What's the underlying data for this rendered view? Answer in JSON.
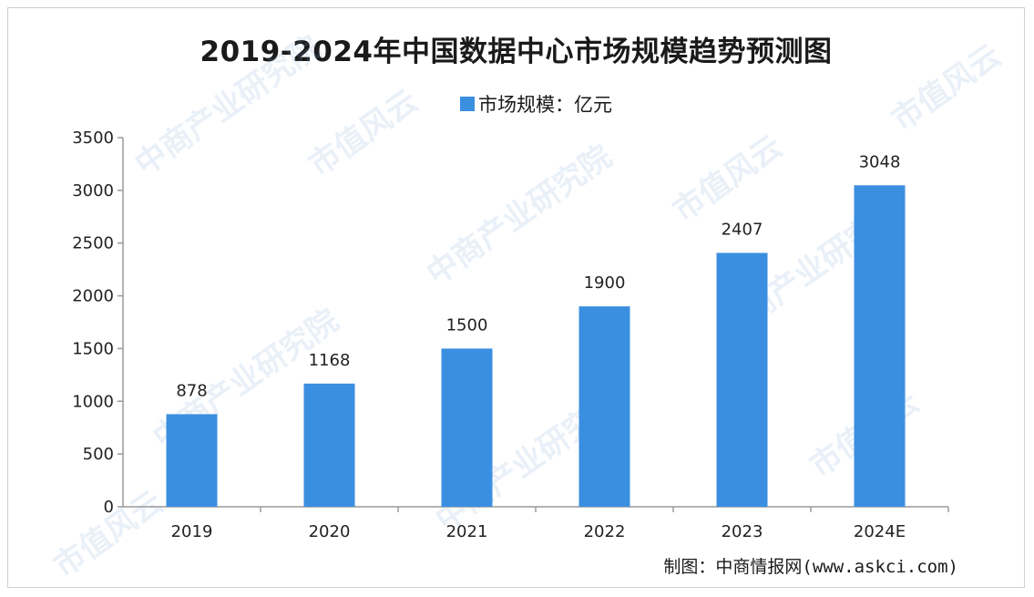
{
  "chart_data": {
    "type": "bar",
    "title": "2019-2024年中国数据中心市场规模趋势预测图",
    "legend": "市场规模：亿元",
    "legend_position": "top",
    "categories": [
      "2019",
      "2020",
      "2021",
      "2022",
      "2023",
      "2024E"
    ],
    "series": [
      {
        "name": "市场规模：亿元",
        "values": [
          878,
          1168,
          1500,
          1900,
          2407,
          3048
        ]
      }
    ],
    "ylim": [
      0,
      3500
    ],
    "yticks": [
      0,
      500,
      1000,
      1500,
      2000,
      2500,
      3000,
      3500
    ],
    "xlabel": "",
    "ylabel": "",
    "grid": false,
    "data_labels": true,
    "bar_color": "#3b8fe0"
  },
  "source": "制图：中商情报网(www.askci.com)",
  "watermarks": [
    "中商产业研究院",
    "市值风云"
  ]
}
